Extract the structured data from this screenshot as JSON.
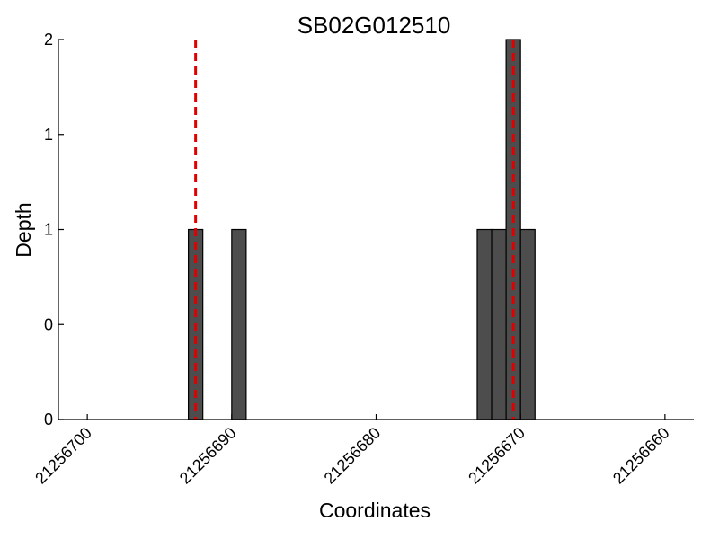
{
  "chart_data": {
    "type": "bar",
    "title": "SB02G012510",
    "xlabel": "Coordinates",
    "ylabel": "Depth",
    "x_reversed": true,
    "xlim": [
      21256702,
      21256658
    ],
    "ylim": [
      0,
      2
    ],
    "x_ticks": [
      21256700,
      21256690,
      21256680,
      21256670,
      21256660
    ],
    "x_tick_labels": [
      "21256700",
      "21256690",
      "21256680",
      "21256670",
      "21256660"
    ],
    "y_ticks": [
      0,
      0.5,
      1,
      1.5,
      2
    ],
    "y_tick_labels": [
      "0",
      "0",
      "1",
      "1",
      "2"
    ],
    "bars": [
      {
        "x": 21256692.5,
        "depth": 1
      },
      {
        "x": 21256689.5,
        "depth": 1
      },
      {
        "x": 21256672.5,
        "depth": 1
      },
      {
        "x": 21256671.5,
        "depth": 1
      },
      {
        "x": 21256670.5,
        "depth": 2
      },
      {
        "x": 21256669.5,
        "depth": 1
      }
    ],
    "bar_width": 1,
    "markers": [
      {
        "x": 21256692.5,
        "style": "dashed"
      },
      {
        "x": 21256670.5,
        "style": "dashed"
      }
    ],
    "colors": {
      "bar_fill": "#4d4d4d",
      "bar_edge": "#000000",
      "marker": "#e00000",
      "axis": "#000000"
    },
    "grid": false
  }
}
